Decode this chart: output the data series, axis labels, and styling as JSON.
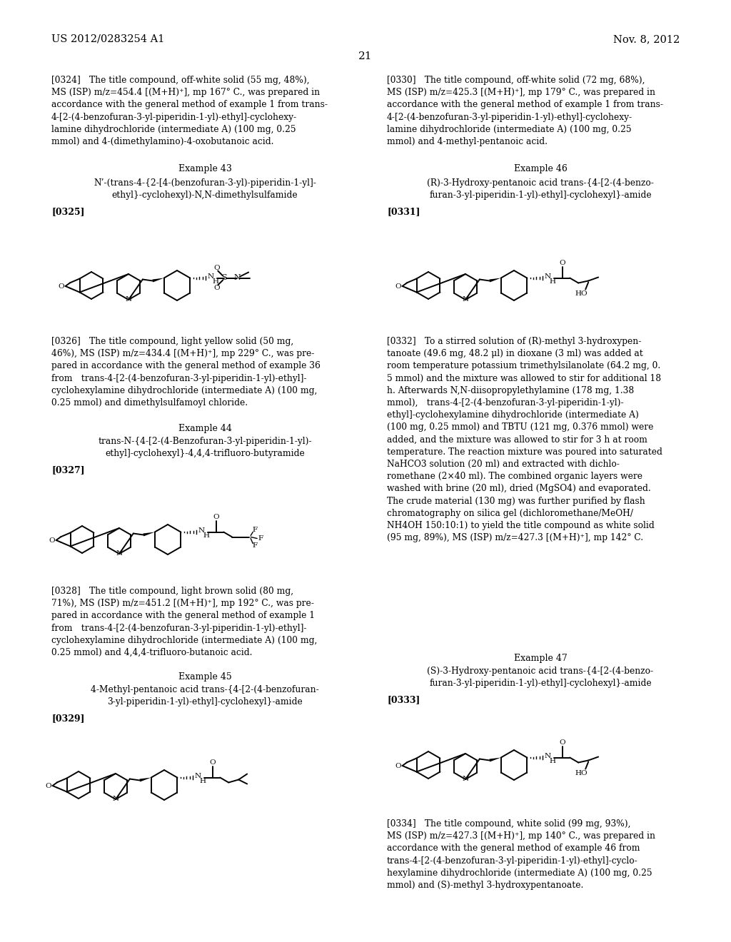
{
  "header_left": "US 2012/0283254 A1",
  "header_right": "Nov. 8, 2012",
  "page_num": "21",
  "lc": {
    "p324": "[0324] The title compound, off-white solid (55 mg, 48%),\nMS (ISP) m/z=454.4 [(M+H)⁺], mp 167° C., was prepared in\naccordance with the general method of example 1 from trans-\n4-[2-(4-benzofuran-3-yl-piperidin-1-yl)-ethyl]-cyclohexy-\nlamine dihydrochloride (intermediate A) (100 mg, 0.25\nmmol) and 4-(dimethylamino)-4-oxobutanoic acid.",
    "ex43_title": "Example 43",
    "ex43_name": "N’-(trans-4-{2-[4-(benzofuran-3-yl)-piperidin-1-yl]-\nethyl}-cyclohexyl)-N,N-dimethylsulfamide",
    "lbl325": "[0325]",
    "p326": "[0326] The title compound, light yellow solid (50 mg,\n46%), MS (ISP) m/z=434.4 [(M+H)⁺], mp 229° C., was pre-\npared in accordance with the general method of example 36\nfrom trans-4-[2-(4-benzofuran-3-yl-piperidin-1-yl)-ethyl]-\ncyclohexylamine dihydrochloride (intermediate A) (100 mg,\n0.25 mmol) and dimethylsulfamoyl chloride.",
    "ex44_title": "Example 44",
    "ex44_name": "trans-N-{4-[2-(4-Benzofuran-3-yl-piperidin-1-yl)-\nethyl]-cyclohexyl}-4,4,4-trifluoro-butyramide",
    "lbl327": "[0327]",
    "p328": "[0328] The title compound, light brown solid (80 mg,\n71%), MS (ISP) m/z=451.2 [(M+H)⁺], mp 192° C., was pre-\npared in accordance with the general method of example 1\nfrom trans-4-[2-(4-benzofuran-3-yl-piperidin-1-yl)-ethyl]-\ncyclohexylamine dihydrochloride (intermediate A) (100 mg,\n0.25 mmol) and 4,4,4-trifluoro-butanoic acid.",
    "ex45_title": "Example 45",
    "ex45_name": "4-Methyl-pentanoic acid trans-{4-[2-(4-benzofuran-\n3-yl-piperidin-1-yl)-ethyl]-cyclohexyl}-amide",
    "lbl329": "[0329]"
  },
  "rc": {
    "p330": "[0330] The title compound, off-white solid (72 mg, 68%),\nMS (ISP) m/z=425.3 [(M+H)⁺], mp 179° C., was prepared in\naccordance with the general method of example 1 from trans-\n4-[2-(4-benzofuran-3-yl-piperidin-1-yl)-ethyl]-cyclohexy-\nlamine dihydrochloride (intermediate A) (100 mg, 0.25\nmmol) and 4-methyl-pentanoic acid.",
    "ex46_title": "Example 46",
    "ex46_name": "(R)-3-Hydroxy-pentanoic acid trans-{4-[2-(4-benzo-\nfuran-3-yl-piperidin-1-yl)-ethyl]-cyclohexyl}-amide",
    "lbl331": "[0331]",
    "p332": "[0332] To a stirred solution of (R)-methyl 3-hydroxypen-\ntanoate (49.6 mg, 48.2 μl) in dioxane (3 ml) was added at\nroom temperature potassium trimethylsilanolate (64.2 mg, 0.\n5 mmol) and the mixture was allowed to stir for additional 18\nh. Afterwards N,N-diisopropylethylamine (178 mg, 1.38\nmmol), trans-4-[2-(4-benzofuran-3-yl-piperidin-1-yl)-\nethyl]-cyclohexylamine dihydrochloride (intermediate A)\n(100 mg, 0.25 mmol) and TBTU (121 mg, 0.376 mmol) were\nadded, and the mixture was allowed to stir for 3 h at room\ntemperature. The reaction mixture was poured into saturated\nNaHCO3 solution (20 ml) and extracted with dichlo-\nromethane (2×40 ml). The combined organic layers were\nwashed with brine (20 ml), dried (MgSO4) and evaporated.\nThe crude material (130 mg) was further purified by flash\nchromatography on silica gel (dichloromethane/MeOH/\nNH4OH 150:10:1) to yield the title compound as white solid\n(95 mg, 89%), MS (ISP) m/z=427.3 [(M+H)⁺], mp 142° C.",
    "ex47_title": "Example 47",
    "ex47_name": "(S)-3-Hydroxy-pentanoic acid trans-{4-[2-(4-benzo-\nfuran-3-yl-piperidin-1-yl)-ethyl]-cyclohexyl}-amide",
    "lbl333": "[0333]",
    "p334": "[0334] The title compound, white solid (99 mg, 93%),\nMS (ISP) m/z=427.3 [(M+H)⁺], mp 140° C., was prepared in\naccordance with the general method of example 46 from\ntrans-4-[2-(4-benzofuran-3-yl-piperidin-1-yl)-ethyl]-cyclo-\nhexylamine dihydrochloride (intermediate A) (100 mg, 0.25\nmmol) and (S)-methyl 3-hydroxypentanoate."
  }
}
